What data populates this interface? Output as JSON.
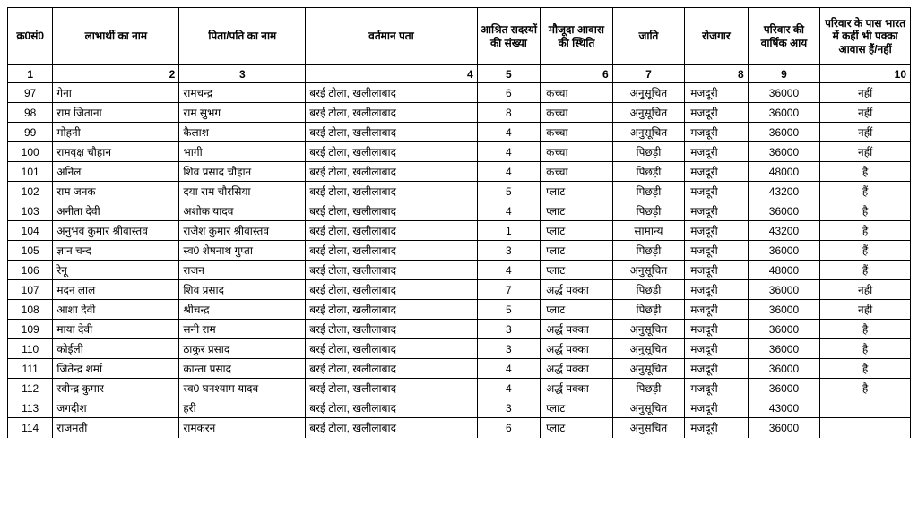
{
  "table": {
    "colWidths": [
      "5%",
      "14%",
      "14%",
      "19%",
      "7%",
      "8%",
      "8%",
      "7%",
      "8%",
      "10%"
    ],
    "headers": [
      "क्र0सं0",
      "लाभार्थी का नाम",
      "पिता/पति का नाम",
      "वर्तमान पता",
      "आश्रित सदस्यों की संख्या",
      "मौजूदा आवास की स्थिति",
      "जाति",
      "रोजगार",
      "परिवार की वार्षिक आय",
      "परिवार के पास भारत में कहीं भी पक्का आवास हैं/नहीं"
    ],
    "numrow": [
      "1",
      "2",
      "3",
      "4",
      "5",
      "6",
      "7",
      "8",
      "9",
      "10"
    ],
    "numrowAlign": [
      "center",
      "right",
      "center",
      "right",
      "center",
      "right",
      "center",
      "right",
      "center",
      "right"
    ],
    "rows": [
      {
        "sr": "97",
        "name": "गेना",
        "fhn": "रामचन्द्र",
        "addr": "बरई टोला, खलीलाबाद",
        "mem": "6",
        "hs": "कच्चा",
        "caste": "अनुसूचित",
        "emp": "मजदूरी",
        "inc": "36000",
        "pucca": "नहीं"
      },
      {
        "sr": "98",
        "name": "राम जिताना",
        "fhn": "राम सुभग",
        "addr": "बरई टोला, खलीलाबाद",
        "mem": "8",
        "hs": "कच्चा",
        "caste": "अनुसूचित",
        "emp": "मजदूरी",
        "inc": "36000",
        "pucca": "नहीं"
      },
      {
        "sr": "99",
        "name": "मोहनी",
        "fhn": "कैलाश",
        "addr": "बरई टोला, खलीलाबाद",
        "mem": "4",
        "hs": "कच्चा",
        "caste": "अनुसूचित",
        "emp": "मजदूरी",
        "inc": "36000",
        "pucca": "नहीं"
      },
      {
        "sr": "100",
        "name": "रामवृक्ष चौहान",
        "fhn": "भागी",
        "addr": "बरई टोला, खलीलाबाद",
        "mem": "4",
        "hs": "कच्चा",
        "caste": "पिछड़ी",
        "emp": "मजदूरी",
        "inc": "36000",
        "pucca": "नहीं"
      },
      {
        "sr": "101",
        "name": "अनिल",
        "fhn": "शिव प्रसाद चौहान",
        "addr": "बरई टोला, खलीलाबाद",
        "mem": "4",
        "hs": "कच्चा",
        "caste": "पिछड़ी",
        "emp": "मजदूरी",
        "inc": "48000",
        "pucca": "है"
      },
      {
        "sr": "102",
        "name": "राम जनक",
        "fhn": "दया राम चौरसिया",
        "addr": "बरई टोला, खलीलाबाद",
        "mem": "5",
        "hs": "प्लाट",
        "caste": "पिछड़ी",
        "emp": "मजदूरी",
        "inc": "43200",
        "pucca": "हैं"
      },
      {
        "sr": "103",
        "name": "अनीता देवी",
        "fhn": "अशोक यादव",
        "addr": "बरई टोला, खलीलाबाद",
        "mem": "4",
        "hs": "प्लाट",
        "caste": "पिछड़ी",
        "emp": "मजदूरी",
        "inc": "36000",
        "pucca": "है"
      },
      {
        "sr": "104",
        "name": "अनुभव कुमार श्रीवास्तव",
        "fhn": "राजेश कुमार श्रीवास्तव",
        "addr": "बरई टोला, खलीलाबाद",
        "mem": "1",
        "hs": "प्लाट",
        "caste": "सामान्य",
        "emp": "मजदूरी",
        "inc": "43200",
        "pucca": "है"
      },
      {
        "sr": "105",
        "name": "ज्ञान चन्द",
        "fhn": "स्व0 शेषनाथ गुप्ता",
        "addr": "बरई टोला, खलीलाबाद",
        "mem": "3",
        "hs": "प्लाट",
        "caste": "पिछड़ी",
        "emp": "मजदूरी",
        "inc": "36000",
        "pucca": "हैं"
      },
      {
        "sr": "106",
        "name": "रेनू",
        "fhn": "राजन",
        "addr": "बरई टोला, खलीलाबाद",
        "mem": "4",
        "hs": "प्लाट",
        "caste": "अनुसूचित",
        "emp": "मजदूरी",
        "inc": "48000",
        "pucca": "हैं"
      },
      {
        "sr": "107",
        "name": "मदन लाल",
        "fhn": "शिव प्रसाद",
        "addr": "बरई टोला, खलीलाबाद",
        "mem": "7",
        "hs": "अर्द्ध पक्का",
        "caste": "पिछड़ी",
        "emp": "मजदूरी",
        "inc": "36000",
        "pucca": "नही"
      },
      {
        "sr": "108",
        "name": "आशा देवी",
        "fhn": "श्रीचन्द्र",
        "addr": "बरई टोला, खलीलाबाद",
        "mem": "5",
        "hs": "प्लाट",
        "caste": "पिछड़ी",
        "emp": "मजदूरी",
        "inc": "36000",
        "pucca": "नही"
      },
      {
        "sr": "109",
        "name": "माया देवी",
        "fhn": "सनी राम",
        "addr": "बरई टोला, खलीलाबाद",
        "mem": "3",
        "hs": "अर्द्ध पक्का",
        "caste": "अनुसूचित",
        "emp": "मजदूरी",
        "inc": "36000",
        "pucca": "है"
      },
      {
        "sr": "110",
        "name": "कोईली",
        "fhn": "ठाकुर प्रसाद",
        "addr": "बरई टोला, खलीलाबाद",
        "mem": "3",
        "hs": "अर्द्ध पक्का",
        "caste": "अनुसूचित",
        "emp": "मजदूरी",
        "inc": "36000",
        "pucca": "है"
      },
      {
        "sr": "111",
        "name": "जितेन्द्र शर्मा",
        "fhn": "कान्ता प्रसाद",
        "addr": "बरई टोला, खलीलाबाद",
        "mem": "4",
        "hs": "अर्द्ध पक्का",
        "caste": "अनुसूचित",
        "emp": "मजदूरी",
        "inc": "36000",
        "pucca": "है"
      },
      {
        "sr": "112",
        "name": "रवीन्द्र कुमार",
        "fhn": "स्व0 घनश्याम यादव",
        "addr": "बरई टोला, खलीलाबाद",
        "mem": "4",
        "hs": "अर्द्ध पक्का",
        "caste": "पिछड़ी",
        "emp": "मजदूरी",
        "inc": "36000",
        "pucca": "है"
      },
      {
        "sr": "113",
        "name": "जगदीश",
        "fhn": "हरी",
        "addr": "बरई टोला, खलीलाबाद",
        "mem": "3",
        "hs": "प्लाट",
        "caste": "अनुसूचित",
        "emp": "मजदूरी",
        "inc": "43000",
        "pucca": ""
      },
      {
        "sr": "114",
        "name": "राजमती",
        "fhn": "रामकरन",
        "addr": "बरई टोला, खलीलाबाद",
        "mem": "6",
        "hs": "प्लाट",
        "caste": "अनुसचित",
        "emp": "मजदूरी",
        "inc": "36000",
        "pucca": ""
      }
    ]
  }
}
